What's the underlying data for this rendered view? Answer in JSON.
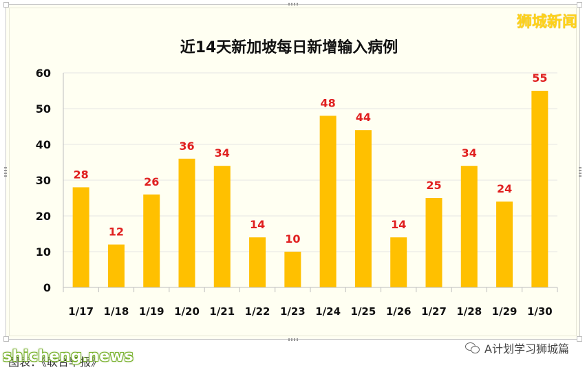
{
  "brand": "狮城新闻",
  "source_text": "图表：《联合早报》",
  "watermark": "shicheng.news",
  "account_name": "A计划学习狮城篇",
  "colors": {
    "bar": "#ffc000",
    "label": "#e02020",
    "background": "#fffff2"
  },
  "chart_data": {
    "type": "bar",
    "title": "近14天新加坡每日新增输入病例",
    "categories": [
      "1/17",
      "1/18",
      "1/19",
      "1/20",
      "1/21",
      "1/22",
      "1/23",
      "1/24",
      "1/25",
      "1/26",
      "1/27",
      "1/28",
      "1/29",
      "1/30"
    ],
    "values": [
      28,
      12,
      26,
      36,
      34,
      14,
      10,
      48,
      44,
      14,
      25,
      34,
      24,
      55
    ],
    "ylim": [
      0,
      60
    ],
    "yticks": [
      0,
      10,
      20,
      30,
      40,
      50,
      60
    ],
    "grid": true,
    "legend": "none",
    "data_labels": true
  }
}
